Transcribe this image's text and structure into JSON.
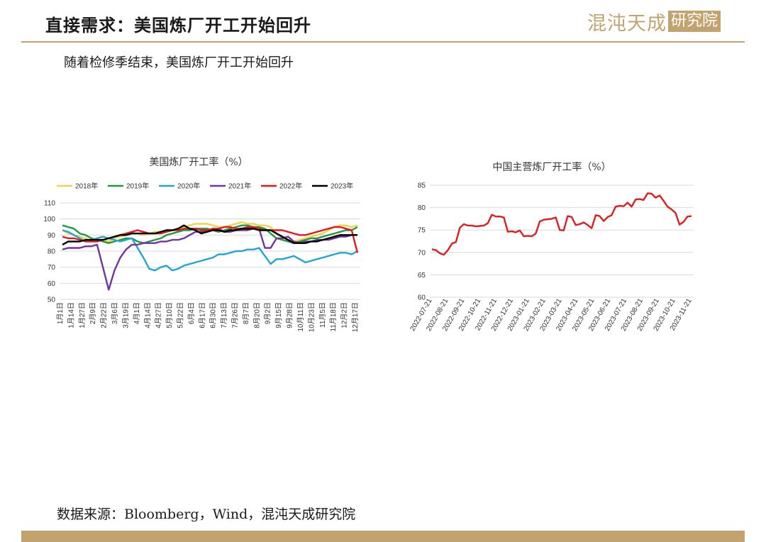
{
  "header": {
    "title": "直接需求：美国炼厂开工开始回升",
    "logo_main": "混沌天成",
    "logo_box": "研究院"
  },
  "subtitle": "随着检修季结束，美国炼厂开工开始回升",
  "footer": {
    "source": "数据来源：Bloomberg，Wind，混沌天成研究院"
  },
  "colors": {
    "accent": "#c2a36e"
  },
  "chart_data": [
    {
      "type": "line",
      "title": "美国炼厂开工率（%）",
      "ylim": [
        50,
        110
      ],
      "yticks": [
        50,
        60,
        70,
        80,
        90,
        100,
        110
      ],
      "xlim": [
        0,
        51
      ],
      "grid": "horizontal",
      "legend": "top",
      "x_tick_labels": [
        "1月1日",
        "1月14日",
        "1月27日",
        "2月9日",
        "2月22日",
        "3月6日",
        "3月19日",
        "4月1日",
        "4月14日",
        "4月27日",
        "5月10日",
        "5月22日",
        "6月4日",
        "6月17日",
        "6月30日",
        "7月13日",
        "7月26日",
        "8月7日",
        "8月20日",
        "9月2日",
        "9月15日",
        "9月28日",
        "10月11日",
        "10月23日",
        "11月5日",
        "11月18日",
        "12月2日",
        "12月17日"
      ],
      "series": [
        {
          "name": "2018年",
          "color": "#f2d24c",
          "values": [
            93,
            91,
            90,
            89,
            88,
            86,
            87,
            87,
            86,
            88,
            89,
            90,
            91,
            91,
            90,
            91,
            92,
            92,
            93,
            93,
            94,
            95,
            96,
            97,
            97,
            97,
            96,
            95,
            95,
            96,
            97,
            98,
            97,
            97,
            96,
            96,
            95,
            91,
            88,
            87,
            86,
            87,
            88,
            89,
            90,
            91,
            93,
            95,
            96,
            96,
            95,
            96
          ]
        },
        {
          "name": "2019年",
          "color": "#1e9b41",
          "values": [
            96,
            95,
            94,
            91,
            90,
            88,
            87,
            86,
            85,
            86,
            87,
            88,
            88,
            86,
            85,
            86,
            87,
            88,
            90,
            91,
            92,
            93,
            93,
            94,
            94,
            94,
            93,
            92,
            93,
            94,
            95,
            96,
            96,
            95,
            95,
            94,
            91,
            88,
            87,
            86,
            85,
            86,
            87,
            88,
            88,
            89,
            90,
            91,
            92,
            93,
            93,
            95
          ]
        },
        {
          "name": "2020年",
          "color": "#1fa7d1",
          "values": [
            93,
            92,
            90,
            88,
            86,
            87,
            88,
            89,
            88,
            87,
            86,
            87,
            88,
            82,
            76,
            69,
            68,
            70,
            71,
            68,
            69,
            71,
            72,
            73,
            74,
            75,
            76,
            78,
            78,
            79,
            80,
            80,
            81,
            81,
            82,
            77,
            72,
            75,
            75,
            76,
            77,
            75,
            73,
            74,
            75,
            76,
            77,
            78,
            79,
            79,
            78,
            80
          ]
        },
        {
          "name": "2021年",
          "color": "#7433a2",
          "values": [
            81,
            82,
            82,
            82,
            83,
            83,
            84,
            70,
            56,
            68,
            76,
            81,
            84,
            84,
            85,
            85,
            85,
            86,
            86,
            87,
            87,
            88,
            90,
            92,
            92,
            93,
            93,
            94,
            92,
            92,
            93,
            93,
            93,
            94,
            94,
            82,
            82,
            88,
            88,
            89,
            86,
            85,
            86,
            86,
            87,
            87,
            87,
            88,
            89,
            89,
            90,
            90
          ]
        },
        {
          "name": "2022年",
          "color": "#e01c1c",
          "values": [
            89,
            88,
            88,
            87,
            86,
            86,
            86,
            87,
            88,
            89,
            90,
            91,
            92,
            93,
            92,
            91,
            91,
            91,
            92,
            93,
            93,
            94,
            94,
            94,
            93,
            93,
            94,
            94,
            95,
            95,
            94,
            94,
            95,
            95,
            94,
            93,
            93,
            93,
            93,
            92,
            91,
            90,
            90,
            91,
            92,
            93,
            94,
            95,
            95,
            94,
            93,
            79
          ]
        },
        {
          "name": "2023年",
          "color": "#000000",
          "values": [
            84,
            86,
            86,
            86,
            87,
            87,
            87,
            87,
            88,
            89,
            90,
            90,
            91,
            91,
            91,
            91,
            91,
            92,
            93,
            93,
            94,
            96,
            94,
            93,
            91,
            92,
            93,
            93,
            92,
            93,
            93,
            94,
            94,
            94,
            93,
            93,
            93,
            91,
            89,
            87,
            85,
            85,
            85,
            86,
            86,
            87,
            88,
            89,
            90,
            90,
            90,
            90
          ]
        }
      ]
    },
    {
      "type": "line",
      "title": "中国主营炼厂开工率（%）",
      "ylim": [
        60,
        85
      ],
      "yticks": [
        60,
        65,
        70,
        75,
        80,
        85
      ],
      "grid": "horizontal",
      "x_tick_labels": [
        "2022-07-21",
        "2022-08-21",
        "2022-09-21",
        "2022-10-21",
        "2022-11-21",
        "2022-12-21",
        "2023-01-21",
        "2023-02-21",
        "2023-03-21",
        "2023-04-21",
        "2023-05-21",
        "2023-06-21",
        "2023-07-21",
        "2023-08-21",
        "2023-09-21",
        "2023-10-21",
        "2023-11-21"
      ],
      "series": [
        {
          "name": "",
          "color": "#e01c1c",
          "values": [
            70.7,
            70.5,
            69.8,
            69.5,
            70.5,
            72.0,
            72.3,
            75.5,
            76.3,
            76.0,
            76.0,
            75.8,
            75.9,
            76.0,
            76.5,
            78.4,
            78.0,
            78.0,
            77.8,
            74.6,
            74.7,
            74.5,
            74.9,
            73.6,
            73.7,
            73.6,
            74.2,
            76.9,
            77.3,
            77.4,
            77.5,
            77.8,
            75.0,
            74.9,
            78.1,
            77.9,
            76.1,
            76.3,
            76.7,
            76.1,
            75.4,
            78.3,
            78.1,
            77.0,
            77.9,
            78.3,
            80.2,
            80.4,
            80.3,
            81.1,
            80.2,
            81.8,
            81.9,
            81.7,
            83.2,
            83.1,
            82.2,
            82.7,
            81.5,
            80.2,
            79.6,
            78.8,
            76.2,
            76.8,
            78.0,
            78.1
          ]
        }
      ]
    }
  ]
}
